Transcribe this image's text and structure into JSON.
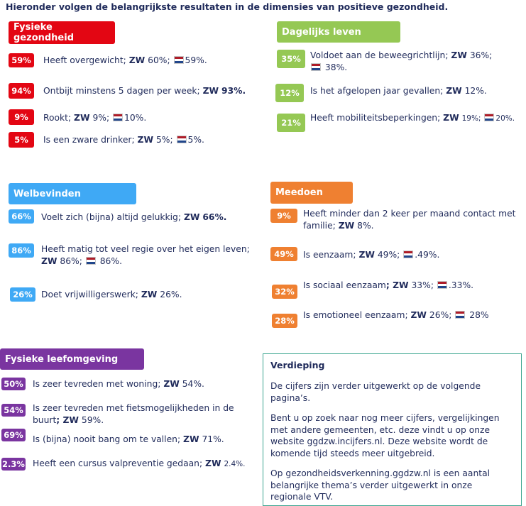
{
  "intro": "Hieronder volgen de belangrijkste resultaten in de dimensies van positieve gezondheid.",
  "colors": {
    "red": "#e30613",
    "green": "#95c854",
    "blue": "#3fa9f5",
    "orange": "#ef8031",
    "purple": "#7a35a0"
  },
  "sections": {
    "fysiek": {
      "title": "Fysieke gezondheid",
      "items": [
        {
          "pct": "59%",
          "text": "Heeft overgewicht;",
          "zw": "ZW",
          "zwval": "60%;",
          "nl": "59%."
        },
        {
          "pct": "94%",
          "text": "Ontbijt minstens 5 dagen per week;",
          "zw": "ZW",
          "zwval": "93%."
        },
        {
          "pct": "9%",
          "text": "Rookt;",
          "zw": "ZW",
          "zwval": "9%;",
          "nl": "10%."
        },
        {
          "pct": "5%",
          "text": "Is een zware drinker;",
          "zw": "ZW",
          "zwval": "5%;",
          "nl": "5%."
        }
      ]
    },
    "dagelijks": {
      "title": "Dagelijks leven",
      "items": [
        {
          "pct": "35%",
          "text": "Voldoet aan de beweegrichtlijn;",
          "zw": "ZW",
          "zwval": "36%;",
          "nl": "38%."
        },
        {
          "pct": "12%",
          "text": "Is het afgelopen jaar gevallen;",
          "zw": "ZW",
          "zwval": "12%."
        },
        {
          "pct": "21%",
          "text": "Heeft mobiliteitsbeperkingen;",
          "zw": "ZW",
          "zwval": "19%;",
          "nl": "20%."
        }
      ]
    },
    "welbevinden": {
      "title": "Welbevinden",
      "items": [
        {
          "pct": "66%",
          "text": "Voelt zich (bijna) altijd gelukkig;",
          "zw": "ZW",
          "zwval": "66%."
        },
        {
          "pct": "86%",
          "text": "Heeft matig tot veel regie over het eigen leven;",
          "zw": "ZW",
          "zwval": "86%;",
          "nl": "86%."
        },
        {
          "pct": "26%",
          "text": "Doet vrijwilligerswerk;",
          "zw": "ZW",
          "zwval": "26%."
        }
      ]
    },
    "meedoen": {
      "title": "Meedoen",
      "items": [
        {
          "pct": "9%",
          "text": "Heeft minder dan 2 keer per maand contact met familie;",
          "zw": "ZW",
          "zwval": "8%."
        },
        {
          "pct": "49%",
          "text": "Is eenzaam;",
          "zw": "ZW",
          "zwval": "49%;",
          "nl": ".49%."
        },
        {
          "pct": "32%",
          "text": "Is sociaal eenzaam",
          "zw": "; ZW",
          "zwval": "33%;",
          "nl": ".33%."
        },
        {
          "pct": "28%",
          "text": "Is emotioneel eenzaam;",
          "zw": "ZW",
          "zwval": "26%;",
          "nl": "28%"
        }
      ]
    },
    "leefomgeving": {
      "title": "Fysieke leefomgeving",
      "items": [
        {
          "pct": "50%",
          "text": "Is zeer tevreden met woning;",
          "zw": "ZW",
          "zwval": "54%."
        },
        {
          "pct": "54%",
          "text": "Is zeer tevreden met fietsmogelijkheden in de buurt",
          "zw": "; ZW",
          "zwval": "59%."
        },
        {
          "pct": "69%",
          "text": "Is (bijna) nooit bang om te vallen;",
          "zw": "ZW",
          "zwval": "71%."
        },
        {
          "pct": "2.3%",
          "text": "Heeft een cursus valpreventie gedaan;",
          "zw": "ZW",
          "zwval": "2.4%."
        }
      ]
    }
  },
  "verdieping": {
    "title": "Verdieping",
    "p1": "De cijfers zijn verder uitgewerkt op de volgende pagina’s.",
    "p2": "Bent u op zoek naar nog meer cijfers, vergelijkingen met andere gemeenten, etc. deze vindt u op onze website ggdzw.incijfers.nl. Deze website wordt de komende tijd steeds meer uitgebreid.",
    "p3": "Op gezondheidsverkenning.ggdzw.nl is een aantal belangrijke thema’s verder uitgewerkt in onze regionale VTV."
  }
}
